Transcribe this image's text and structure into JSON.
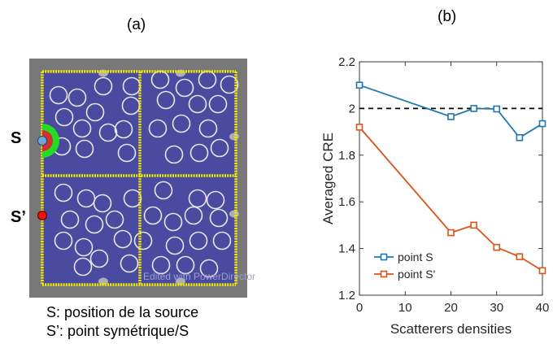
{
  "panel_a": {
    "label": "(a)",
    "source_label": "S",
    "symmetric_label": "S’",
    "caption_line1": "S: position de la source",
    "caption_line2": "S’: point symétrique/S",
    "watermark": "Edited with PowerDirector",
    "colors": {
      "frame": "#787878",
      "medium": "#4a4aa0",
      "wall": "#f2ea00",
      "scatterer": "#e8e8e8",
      "source_marker": "#6fa8dc",
      "source_zone": "#22dd22",
      "symmetric_marker": "#ee1111"
    }
  },
  "chart_data": {
    "type": "line",
    "panel_label": "(b)",
    "xlabel": "Scatterers densities",
    "ylabel": "Averaged CRE",
    "xlim": [
      0,
      40
    ],
    "ylim": [
      1.2,
      2.2
    ],
    "xticks": [
      0,
      10,
      20,
      30,
      40
    ],
    "yticks": [
      1.2,
      1.4,
      1.6,
      1.8,
      2.0,
      2.2
    ],
    "ytick_labels": [
      "1.2",
      "1.4",
      "1.6",
      "1.8",
      "2",
      "2.2"
    ],
    "reference_line": {
      "y": 2.0,
      "style": "dashed",
      "color": "#000000"
    },
    "legend_position": "bottom-left",
    "series": [
      {
        "name": "point S",
        "color": "#1f77b4",
        "marker": "square",
        "x": [
          0,
          20,
          25,
          30,
          35,
          40
        ],
        "y": [
          2.1,
          1.965,
          2.0,
          1.998,
          1.875,
          1.935
        ]
      },
      {
        "name": "point S'",
        "color": "#d95319",
        "marker": "square",
        "x": [
          0,
          20,
          25,
          30,
          35,
          40
        ],
        "y": [
          1.92,
          1.468,
          1.5,
          1.405,
          1.365,
          1.305
        ]
      }
    ]
  }
}
